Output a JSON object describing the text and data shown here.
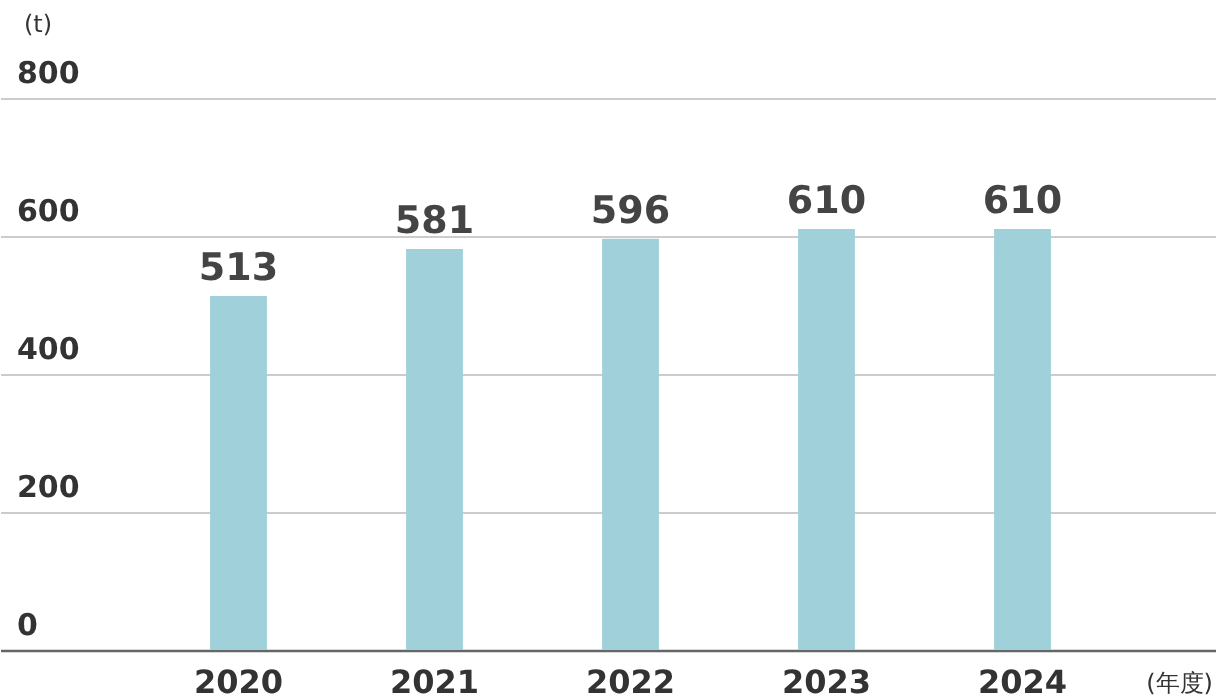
{
  "chart_data": {
    "type": "bar",
    "ylabel": "(t)",
    "xlabel": "(年度)",
    "categories": [
      "2020",
      "2021",
      "2022",
      "2023",
      "2024"
    ],
    "values": [
      513,
      581,
      596,
      610,
      610
    ],
    "color": "#a0d0da",
    "ylim": [
      0,
      800
    ],
    "yticks": [
      0,
      200,
      400,
      600,
      800
    ],
    "grid": "y",
    "data_labels": true
  }
}
